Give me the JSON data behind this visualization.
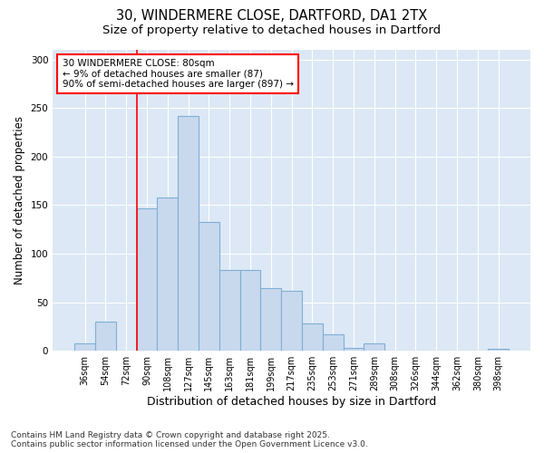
{
  "title_line1": "30, WINDERMERE CLOSE, DARTFORD, DA1 2TX",
  "title_line2": "Size of property relative to detached houses in Dartford",
  "xlabel": "Distribution of detached houses by size in Dartford",
  "ylabel": "Number of detached properties",
  "bar_color": "#c8d9ee",
  "bar_edge_color": "#7fafd4",
  "plot_bg_color": "#dce8f5",
  "fig_bg_color": "#ffffff",
  "categories": [
    "36sqm",
    "54sqm",
    "72sqm",
    "90sqm",
    "108sqm",
    "127sqm",
    "145sqm",
    "163sqm",
    "181sqm",
    "199sqm",
    "217sqm",
    "235sqm",
    "253sqm",
    "271sqm",
    "289sqm",
    "308sqm",
    "326sqm",
    "344sqm",
    "362sqm",
    "380sqm",
    "398sqm"
  ],
  "values": [
    8,
    30,
    0,
    147,
    158,
    242,
    133,
    83,
    83,
    65,
    62,
    28,
    17,
    3,
    8,
    0,
    0,
    0,
    0,
    0,
    2
  ],
  "ylim": [
    0,
    310
  ],
  "yticks": [
    0,
    50,
    100,
    150,
    200,
    250,
    300
  ],
  "red_line_index": 2.5,
  "annotation_text": "30 WINDERMERE CLOSE: 80sqm\n← 9% of detached houses are smaller (87)\n90% of semi-detached houses are larger (897) →",
  "grid_color": "#ffffff",
  "title_fontsize": 10.5,
  "subtitle_fontsize": 9.5,
  "tick_fontsize": 7,
  "ylabel_fontsize": 8.5,
  "xlabel_fontsize": 9,
  "annotation_fontsize": 7.5,
  "footer_fontsize": 6.5,
  "footer_line1": "Contains HM Land Registry data © Crown copyright and database right 2025.",
  "footer_line2": "Contains public sector information licensed under the Open Government Licence v3.0."
}
